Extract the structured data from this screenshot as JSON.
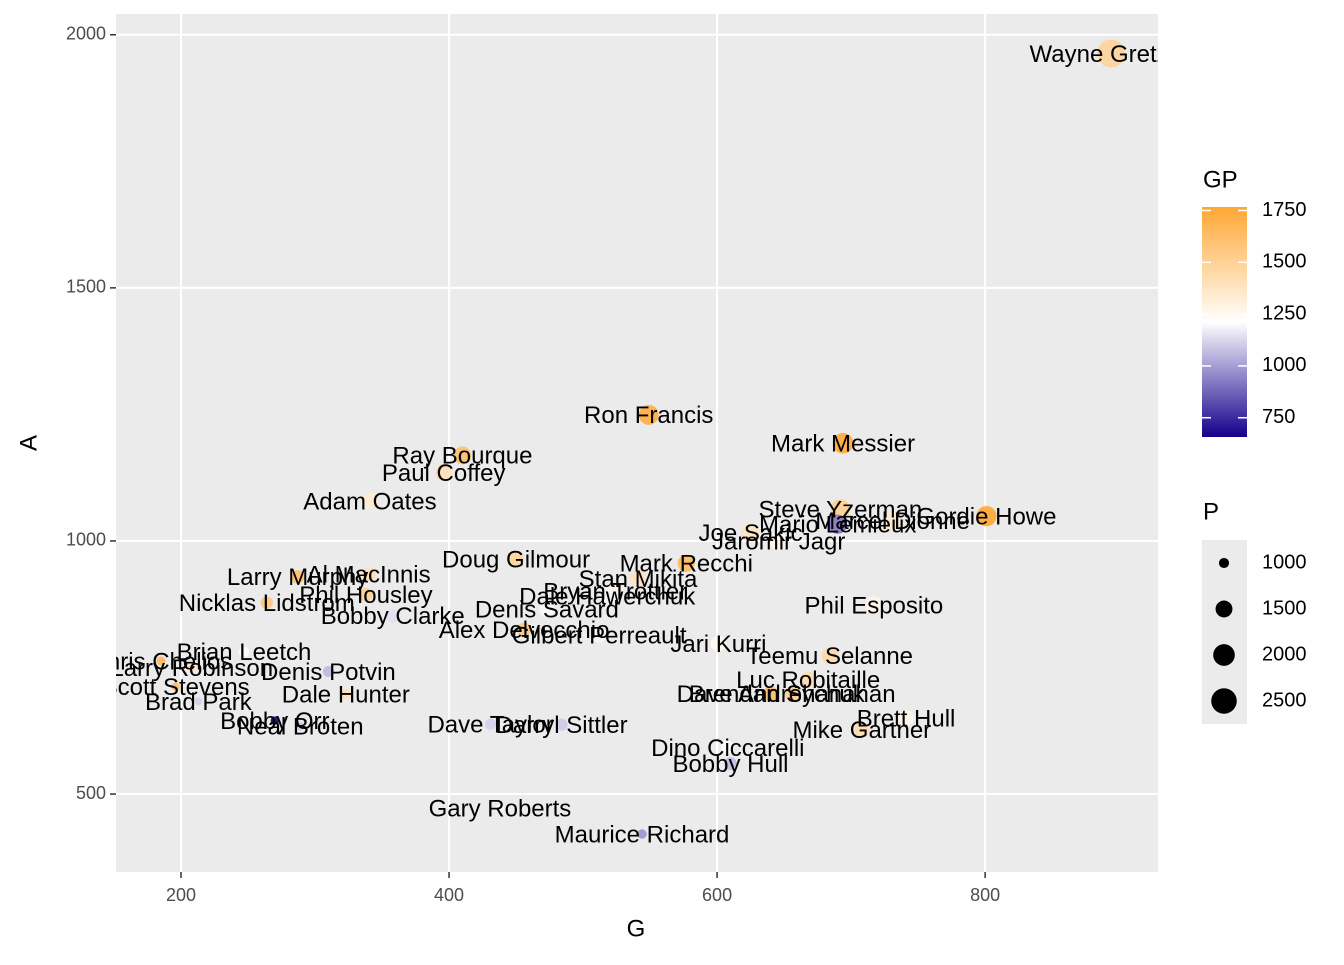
{
  "chart_data": {
    "type": "scatter",
    "x_label": "G",
    "y_label": "A",
    "xlim": [
      151.5,
      929
    ],
    "ylim": [
      346,
      2041
    ],
    "xticks": [
      200,
      400,
      600,
      800
    ],
    "yticks": [
      500,
      1000,
      1500,
      2000
    ],
    "grid": true,
    "color_legend": {
      "title": "GP",
      "ticks": [
        750,
        1000,
        1250,
        1500,
        1750
      ],
      "colors": [
        "#12008c",
        "#ffffff",
        "#ffa733"
      ]
    },
    "size_legend": {
      "title": "P",
      "values": [
        1000,
        1500,
        2000,
        2500
      ]
    },
    "points": {
      "names": [
        "Wayne Gretzky",
        "Ron Francis",
        "Mark Messier",
        "Ray Bourque",
        "Paul Coffey",
        "Adam Oates",
        "Steve Yzerman",
        "Gordie Howe",
        "Mario Lemieux",
        "Marcel Dionne",
        "Joe Sakic",
        "Jaromir Jagr",
        "Doug Gilmour",
        "Mark Recchi",
        "Larry Murphy",
        "Al MacInnis",
        "Stan Mikita",
        "Bryan Trottier",
        "Dale Hawerchuk",
        "Phil Housley",
        "Nicklas Lidstrom",
        "Phil Esposito",
        "Denis Savard",
        "Bobby Clarke",
        "Alex Delvecchio",
        "Gilbert Perreault",
        "Jari Kurri",
        "Brian Leetch",
        "Teemu Selanne",
        "Luc Robitaille",
        "Brendan Shanahan",
        "Dave Andreychuk",
        "Brett Hull",
        "Mike Gartner",
        "Chris Chelios",
        "Larry Robinson",
        "Scott Stevens",
        "Brad Park",
        "Denis Potvin",
        "Dale Hunter",
        "Bobby Orr",
        "Neal Broten",
        "Darryl Sittler",
        "Maurice Richard",
        "Gary Roberts",
        "Dino Ciccarelli",
        "Bobby Hull",
        "Dave Taylor"
      ],
      "G": [
        894,
        549,
        694,
        410,
        396,
        341,
        692,
        801,
        690,
        731,
        625,
        646,
        450,
        577,
        287,
        340,
        541,
        524,
        518,
        338,
        264,
        717,
        473,
        358,
        456,
        512,
        601,
        247,
        684,
        668,
        656,
        640,
        741,
        708,
        185,
        208,
        196,
        213,
        310,
        323,
        270,
        289,
        484,
        544,
        438,
        608,
        610,
        431
      ],
      "A": [
        1963,
        1249,
        1193,
        1169,
        1135,
        1079,
        1063,
        1049,
        1033,
        1040,
        1016,
        1000,
        964,
        956,
        929,
        934,
        926,
        901,
        891,
        894,
        878,
        873,
        865,
        852,
        825,
        814,
        797,
        781,
        773,
        726,
        698,
        698,
        650,
        627,
        763,
        750,
        712,
        683,
        742,
        697,
        645,
        634,
        637,
        421,
        472,
        592,
        560,
        638
      ],
      "GP": [
        1487,
        1731,
        1756,
        1612,
        1409,
        1337,
        1514,
        1767,
        915,
        1348,
        1378,
        1273,
        1474,
        1652,
        1615,
        1416,
        1394,
        1279,
        1188,
        1495,
        1564,
        1282,
        1196,
        1144,
        1549,
        1191,
        1251,
        1205,
        1451,
        1431,
        1524,
        1639,
        1269,
        1432,
        1651,
        1384,
        1635,
        1113,
        1060,
        1407,
        657,
        1099,
        1096,
        978,
        1224,
        1232,
        1063,
        1111
      ],
      "P": [
        2857,
        1798,
        1887,
        1579,
        1531,
        1420,
        1755,
        1850,
        1723,
        1771,
        1641,
        1646,
        1414,
        1533,
        1216,
        1274,
        1467,
        1425,
        1409,
        1232,
        1142,
        1590,
        1338,
        1210,
        1281,
        1326,
        1398,
        1028,
        1457,
        1394,
        1354,
        1338,
        1391,
        1335,
        948,
        958,
        908,
        896,
        1052,
        1020,
        915,
        923,
        1121,
        965,
        910,
        1200,
        1170,
        1069
      ]
    }
  }
}
